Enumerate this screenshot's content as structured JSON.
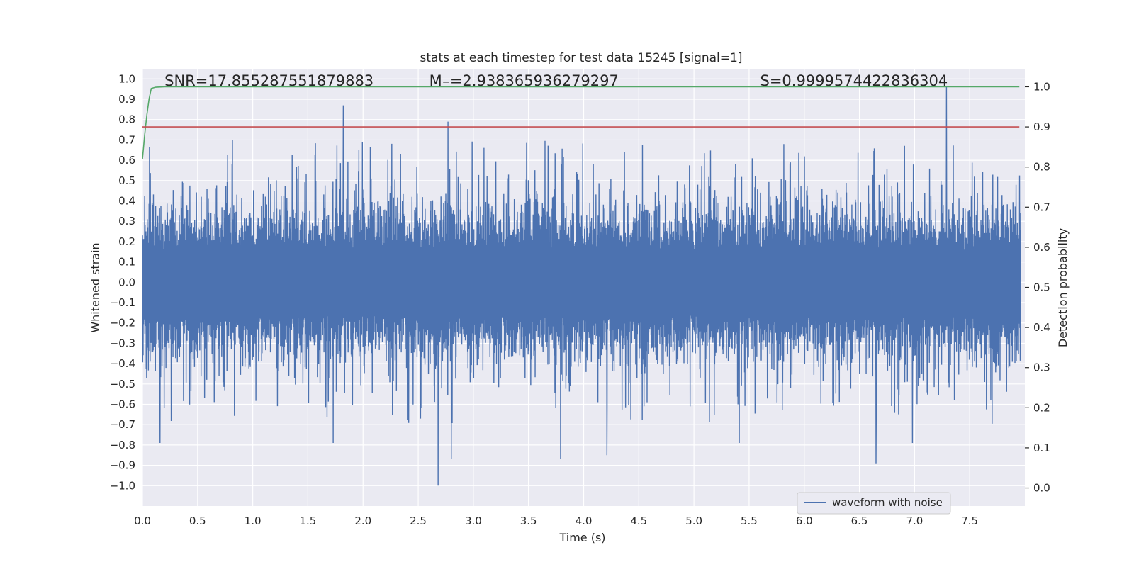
{
  "chart_data": {
    "type": "line",
    "title": "stats at each timestep for test data 15245 [signal=1]",
    "xlabel": "Time (s)",
    "ylabel": "Whitened strain",
    "y2label": "Detection probability",
    "xlim": [
      0.0,
      8.0
    ],
    "ylim": [
      -1.1,
      1.05
    ],
    "y2lim": [
      -0.045,
      1.045
    ],
    "xticks": [
      "0.0",
      "0.5",
      "1.0",
      "1.5",
      "2.0",
      "2.5",
      "3.0",
      "3.5",
      "4.0",
      "4.5",
      "5.0",
      "5.5",
      "6.0",
      "6.5",
      "7.0",
      "7.5"
    ],
    "yticks": [
      "1.0",
      "0.9",
      "0.8",
      "0.7",
      "0.6",
      "0.5",
      "0.4",
      "0.3",
      "0.2",
      "0.1",
      "0.0",
      "−0.1",
      "−0.2",
      "−0.3",
      "−0.4",
      "−0.5",
      "−0.6",
      "−0.7",
      "−0.8",
      "−0.9",
      "−1.0"
    ],
    "y2ticks": [
      "1.0",
      "0.9",
      "0.8",
      "0.7",
      "0.6",
      "0.5",
      "0.4",
      "0.3",
      "0.2",
      "0.1",
      "0.0"
    ],
    "grid": true,
    "legend_placement": "lower-right",
    "annotations": [
      {
        "text": "SNR=17.855287551879883",
        "x": 0.2,
        "y": 0.995
      },
      {
        "text": "M₌=2.938365936279297",
        "x": 2.6,
        "y": 0.995
      },
      {
        "text": "S=0.9999574422836304",
        "x": 5.6,
        "y": 0.995
      }
    ],
    "series": [
      {
        "name": "waveform with noise",
        "axis": "left",
        "color": "#4c72b0",
        "description_hint": "dense noisy strain, time 0 to ~7.96 s",
        "peaks": [
          {
            "x": 1.82,
            "y": 0.87
          },
          {
            "x": 2.77,
            "y": 0.79
          },
          {
            "x": 7.29,
            "y": 0.96
          },
          {
            "x": 2.68,
            "y": -1.0
          },
          {
            "x": 2.8,
            "y": -0.87
          },
          {
            "x": 3.79,
            "y": -0.87
          },
          {
            "x": 4.21,
            "y": -0.85
          },
          {
            "x": 6.65,
            "y": -0.89
          },
          {
            "x": 0.16,
            "y": -0.79
          },
          {
            "x": 1.73,
            "y": -0.79
          },
          {
            "x": 5.41,
            "y": -0.79
          },
          {
            "x": 6.98,
            "y": -0.79
          }
        ]
      },
      {
        "axis": "right",
        "color": "#55a868",
        "x": [
          0.0,
          0.02,
          0.04,
          0.06,
          0.08,
          0.12,
          0.2,
          1.0,
          3.0,
          5.0,
          7.0,
          7.95
        ],
        "values": [
          0.82,
          0.88,
          0.93,
          0.97,
          0.996,
          0.999,
          1.0,
          1.0,
          1.0,
          1.0,
          1.0,
          1.0
        ]
      },
      {
        "axis": "right",
        "color": "#c44e52",
        "x": [
          0.0,
          7.95
        ],
        "values": [
          0.9,
          0.9
        ]
      }
    ]
  },
  "colors": {
    "plot_background": "#eaeaf2",
    "grid": "#ffffff",
    "waveform": "#4c72b0",
    "probability": "#55a868",
    "threshold": "#c44e52"
  }
}
